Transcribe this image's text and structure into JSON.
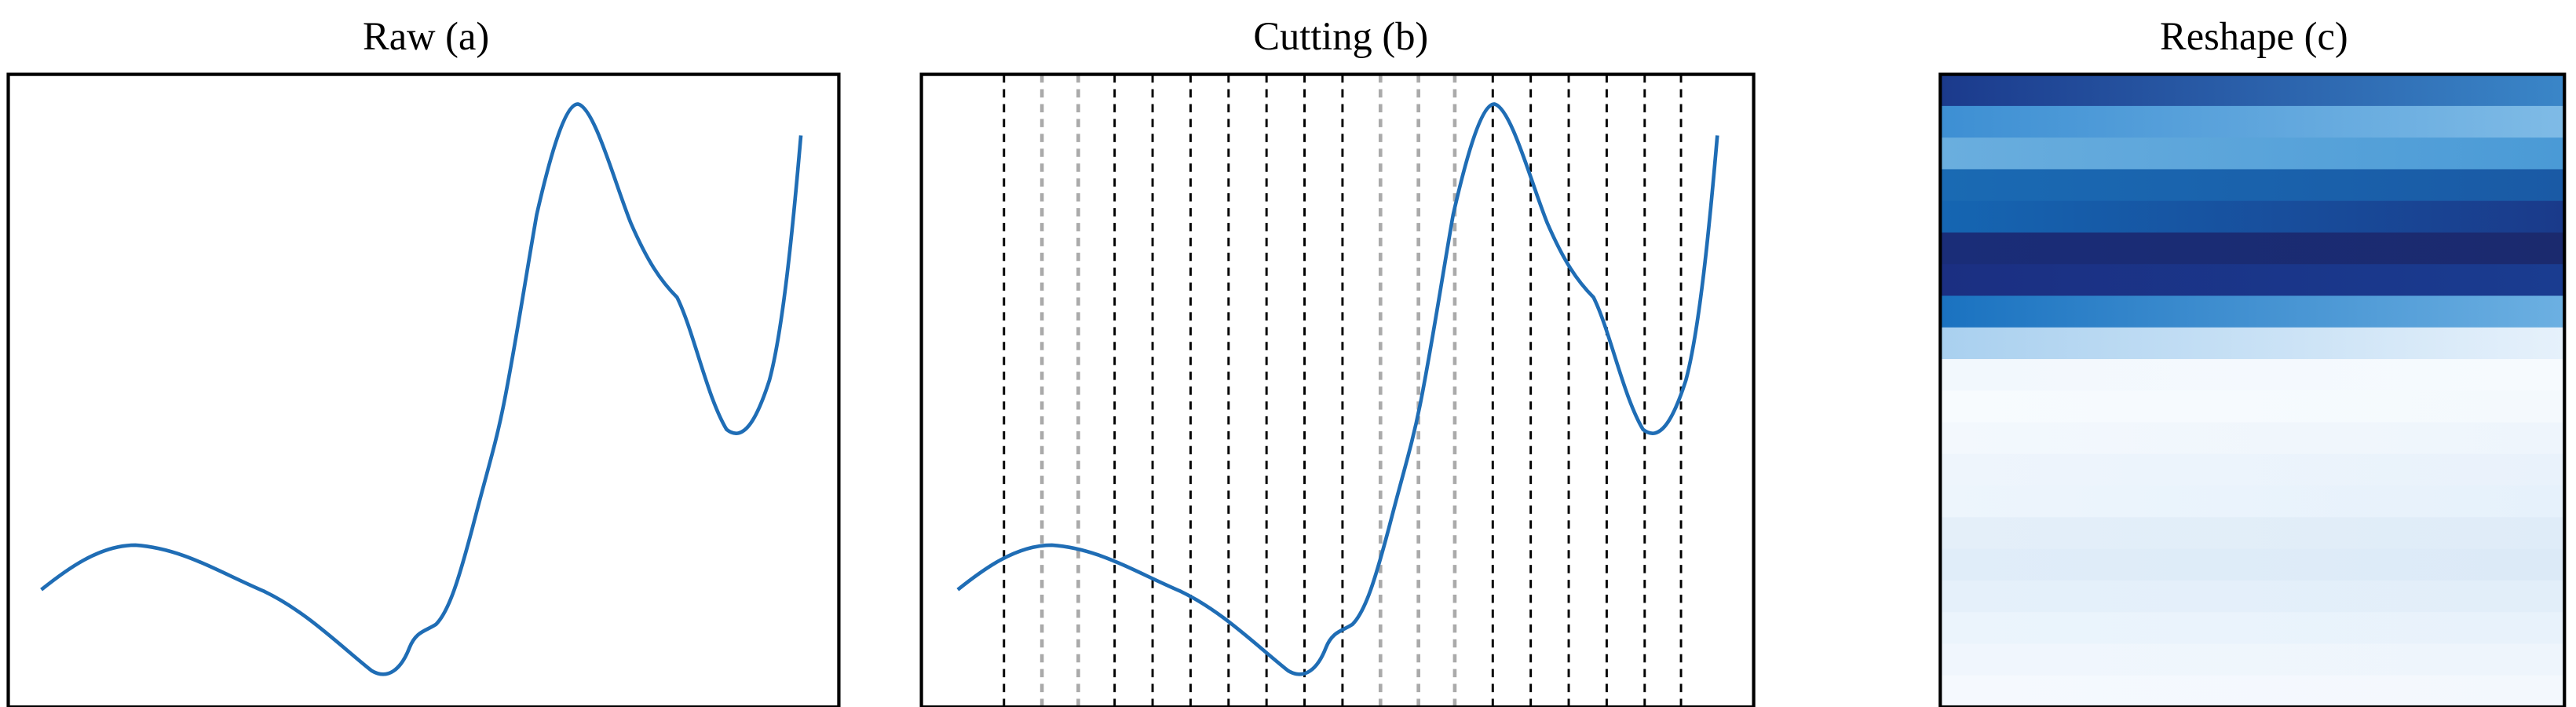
{
  "panels": [
    {
      "title": "Raw (a)"
    },
    {
      "title": "Cutting (b)"
    },
    {
      "title": "Reshape (c)"
    }
  ]
}
